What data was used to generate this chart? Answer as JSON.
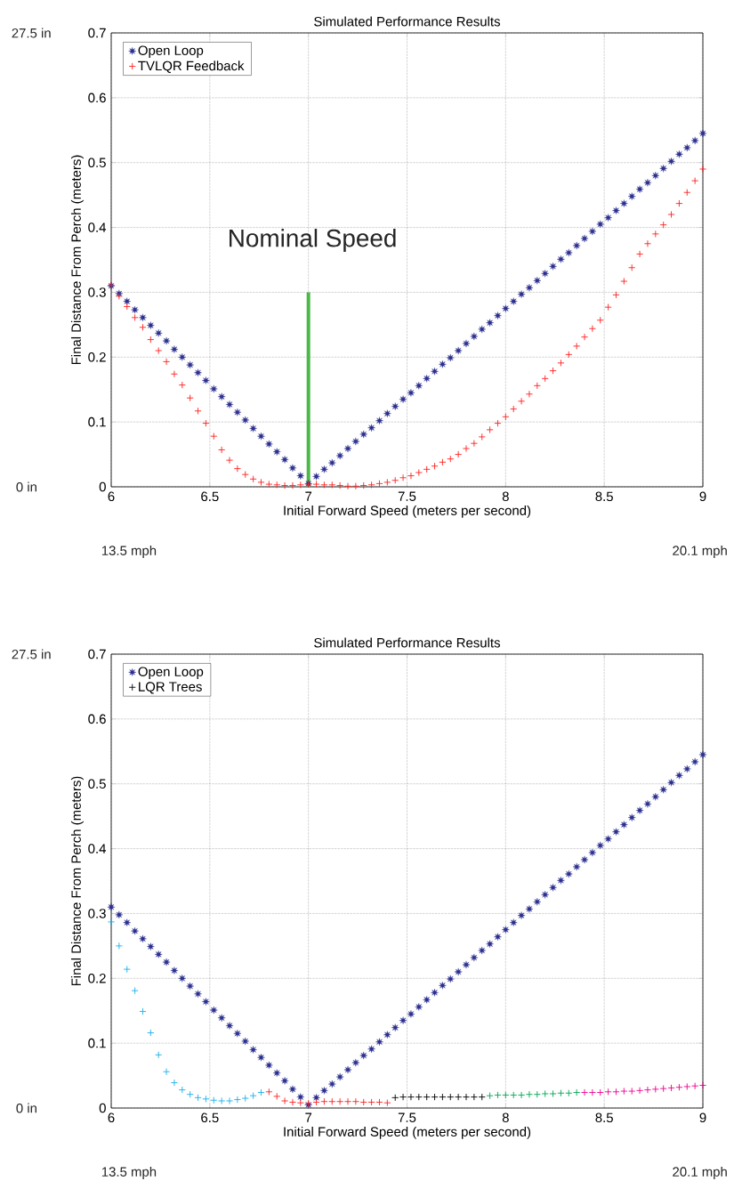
{
  "chart_data": [
    {
      "type": "scatter",
      "title": "Simulated Performance Results",
      "xlabel": "Initial Forward Speed (meters per second)",
      "ylabel": "Final Distance From Perch (meters)",
      "xlim": [
        6,
        9
      ],
      "ylim": [
        0,
        0.7
      ],
      "xticks": [
        6,
        6.5,
        7,
        7.5,
        8,
        8.5,
        9
      ],
      "yticks": [
        0,
        0.1,
        0.2,
        0.3,
        0.4,
        0.5,
        0.6,
        0.7
      ],
      "grid": true,
      "legend": "top left",
      "annotations": [
        "27.5 in",
        "0 in",
        "13.5 mph",
        "20.1 mph",
        "Nominal Speed"
      ],
      "x": [
        6,
        6.04,
        6.08,
        6.12,
        6.16,
        6.2,
        6.24,
        6.28,
        6.32,
        6.36,
        6.4,
        6.44,
        6.48,
        6.52,
        6.56,
        6.6,
        6.64,
        6.68,
        6.72,
        6.76,
        6.8,
        6.84,
        6.88,
        6.92,
        6.96,
        7,
        7.04,
        7.08,
        7.12,
        7.16,
        7.2,
        7.24,
        7.28,
        7.32,
        7.36,
        7.4,
        7.44,
        7.48,
        7.52,
        7.56,
        7.6,
        7.64,
        7.68,
        7.72,
        7.76,
        7.8,
        7.84,
        7.88,
        7.92,
        7.96,
        8,
        8.04,
        8.08,
        8.12,
        8.16,
        8.2,
        8.24,
        8.28,
        8.32,
        8.36,
        8.4,
        8.44,
        8.48,
        8.52,
        8.56,
        8.6,
        8.64,
        8.68,
        8.72,
        8.76,
        8.8,
        8.84,
        8.88,
        8.92,
        8.96,
        9
      ],
      "series": [
        {
          "name": "Open Loop",
          "color": "#2b2f8f",
          "marker": "star",
          "values": [
            0.31,
            0.298,
            0.286,
            0.273,
            0.261,
            0.249,
            0.237,
            0.225,
            0.212,
            0.2,
            0.188,
            0.176,
            0.164,
            0.151,
            0.139,
            0.127,
            0.115,
            0.103,
            0.09,
            0.078,
            0.066,
            0.054,
            0.042,
            0.029,
            0.017,
            0.005,
            0.016,
            0.027,
            0.037,
            0.048,
            0.059,
            0.07,
            0.081,
            0.091,
            0.102,
            0.113,
            0.124,
            0.135,
            0.145,
            0.156,
            0.167,
            0.178,
            0.189,
            0.199,
            0.21,
            0.221,
            0.232,
            0.243,
            0.253,
            0.264,
            0.275,
            0.286,
            0.297,
            0.307,
            0.318,
            0.329,
            0.34,
            0.351,
            0.361,
            0.372,
            0.383,
            0.394,
            0.405,
            0.415,
            0.426,
            0.437,
            0.448,
            0.459,
            0.469,
            0.48,
            0.491,
            0.502,
            0.513,
            0.523,
            0.534,
            0.545
          ]
        },
        {
          "name": "TVLQR Feedback",
          "color": "#ff2020",
          "marker": "cross",
          "values": [
            0.311,
            0.294,
            0.278,
            0.261,
            0.246,
            0.227,
            0.21,
            0.193,
            0.174,
            0.157,
            0.137,
            0.117,
            0.098,
            0.078,
            0.057,
            0.041,
            0.028,
            0.019,
            0.012,
            0.007,
            0.004,
            0.003,
            0.002,
            0.002,
            0.003,
            0.004,
            0.004,
            0.003,
            0.003,
            0.002,
            0.001,
            0.001,
            0.002,
            0.003,
            0.005,
            0.007,
            0.01,
            0.014,
            0.017,
            0.022,
            0.027,
            0.032,
            0.038,
            0.043,
            0.05,
            0.059,
            0.067,
            0.077,
            0.088,
            0.098,
            0.108,
            0.12,
            0.132,
            0.143,
            0.156,
            0.167,
            0.179,
            0.191,
            0.204,
            0.217,
            0.231,
            0.244,
            0.257,
            0.277,
            0.296,
            0.317,
            0.338,
            0.359,
            0.375,
            0.39,
            0.404,
            0.42,
            0.437,
            0.454,
            0.472,
            0.49
          ]
        },
        {
          "type": "line",
          "color": "#4cb848",
          "x": [
            7,
            7
          ],
          "values": [
            0,
            0.3
          ]
        }
      ]
    },
    {
      "type": "scatter",
      "title": "Simulated Performance Results",
      "xlabel": "Initial Forward Speed (meters per second)",
      "ylabel": "Final Distance From Perch (meters)",
      "xlim": [
        6,
        9
      ],
      "ylim": [
        0,
        0.7
      ],
      "xticks": [
        6,
        6.5,
        7,
        7.5,
        8,
        8.5,
        9
      ],
      "yticks": [
        0,
        0.1,
        0.2,
        0.3,
        0.4,
        0.5,
        0.6,
        0.7
      ],
      "grid": true,
      "legend": "top left",
      "annotations": [
        "27.5 in",
        "0 in",
        "13.5 mph",
        "20.1 mph"
      ],
      "x": [
        6,
        6.04,
        6.08,
        6.12,
        6.16,
        6.2,
        6.24,
        6.28,
        6.32,
        6.36,
        6.4,
        6.44,
        6.48,
        6.52,
        6.56,
        6.6,
        6.64,
        6.68,
        6.72,
        6.76,
        6.8,
        6.84,
        6.88,
        6.92,
        6.96,
        7,
        7.04,
        7.08,
        7.12,
        7.16,
        7.2,
        7.24,
        7.28,
        7.32,
        7.36,
        7.4,
        7.44,
        7.48,
        7.52,
        7.56,
        7.6,
        7.64,
        7.68,
        7.72,
        7.76,
        7.8,
        7.84,
        7.88,
        7.92,
        7.96,
        8,
        8.04,
        8.08,
        8.12,
        8.16,
        8.2,
        8.24,
        8.28,
        8.32,
        8.36,
        8.4,
        8.44,
        8.48,
        8.52,
        8.56,
        8.6,
        8.64,
        8.68,
        8.72,
        8.76,
        8.8,
        8.84,
        8.88,
        8.92,
        8.96,
        9
      ],
      "series": [
        {
          "name": "Open Loop",
          "color": "#2b2f8f",
          "marker": "star",
          "values": [
            0.31,
            0.298,
            0.286,
            0.273,
            0.261,
            0.249,
            0.237,
            0.225,
            0.212,
            0.2,
            0.188,
            0.176,
            0.164,
            0.151,
            0.139,
            0.127,
            0.115,
            0.103,
            0.09,
            0.078,
            0.066,
            0.054,
            0.042,
            0.029,
            0.017,
            0.005,
            0.016,
            0.027,
            0.037,
            0.048,
            0.059,
            0.07,
            0.081,
            0.091,
            0.102,
            0.113,
            0.124,
            0.135,
            0.145,
            0.156,
            0.167,
            0.178,
            0.189,
            0.199,
            0.21,
            0.221,
            0.232,
            0.243,
            0.253,
            0.264,
            0.275,
            0.286,
            0.297,
            0.307,
            0.318,
            0.329,
            0.34,
            0.351,
            0.361,
            0.372,
            0.383,
            0.394,
            0.405,
            0.415,
            0.426,
            0.437,
            0.448,
            0.459,
            0.469,
            0.48,
            0.491,
            0.502,
            0.513,
            0.523,
            0.534,
            0.545
          ]
        },
        {
          "name": "LQR Trees",
          "color": "#000000",
          "marker": "cross",
          "values": [
            0.287,
            0.25,
            0.214,
            0.181,
            0.149,
            0.116,
            0.082,
            0.056,
            0.039,
            0.028,
            0.021,
            0.016,
            0.014,
            0.012,
            0.011,
            0.011,
            0.013,
            0.015,
            0.019,
            0.024,
            0.025,
            0.018,
            0.011,
            0.009,
            0.008,
            0.007,
            0.009,
            0.01,
            0.01,
            0.01,
            0.01,
            0.01,
            0.009,
            0.009,
            0.009,
            0.008,
            0.016,
            0.017,
            0.017,
            0.017,
            0.017,
            0.017,
            0.017,
            0.017,
            0.017,
            0.017,
            0.017,
            0.017,
            0.019,
            0.02,
            0.02,
            0.02,
            0.02,
            0.021,
            0.021,
            0.022,
            0.022,
            0.023,
            0.023,
            0.024,
            0.024,
            0.024,
            0.024,
            0.025,
            0.025,
            0.026,
            0.026,
            0.027,
            0.028,
            0.029,
            0.03,
            0.031,
            0.032,
            0.033,
            0.034,
            0.035
          ],
          "colors": [
            "#1ab0e8",
            "#1ab0e8",
            "#1ab0e8",
            "#1ab0e8",
            "#1ab0e8",
            "#1ab0e8",
            "#1ab0e8",
            "#1ab0e8",
            "#1ab0e8",
            "#1ab0e8",
            "#1ab0e8",
            "#1ab0e8",
            "#1ab0e8",
            "#1ab0e8",
            "#1ab0e8",
            "#1ab0e8",
            "#1ab0e8",
            "#1ab0e8",
            "#1ab0e8",
            "#1ab0e8",
            "#ff2020",
            "#ff2020",
            "#ff2020",
            "#ff2020",
            "#ff2020",
            "#ff2020",
            "#ff2020",
            "#ff2020",
            "#ff2020",
            "#ff2020",
            "#ff2020",
            "#ff2020",
            "#ff2020",
            "#ff2020",
            "#ff2020",
            "#ff2020",
            "#000000",
            "#000000",
            "#000000",
            "#000000",
            "#000000",
            "#000000",
            "#000000",
            "#000000",
            "#000000",
            "#000000",
            "#000000",
            "#000000",
            "#00a651",
            "#00a651",
            "#00a651",
            "#00a651",
            "#00a651",
            "#00a651",
            "#00a651",
            "#00a651",
            "#00a651",
            "#00a651",
            "#00a651",
            "#00a651",
            "#ec008c",
            "#ec008c",
            "#ec008c",
            "#ec008c",
            "#ec008c",
            "#ec008c",
            "#ec008c",
            "#ec008c",
            "#ec008c",
            "#ec008c",
            "#ec008c",
            "#ec008c",
            "#ec008c",
            "#ec008c",
            "#ec008c",
            "#ec008c"
          ]
        }
      ]
    }
  ]
}
